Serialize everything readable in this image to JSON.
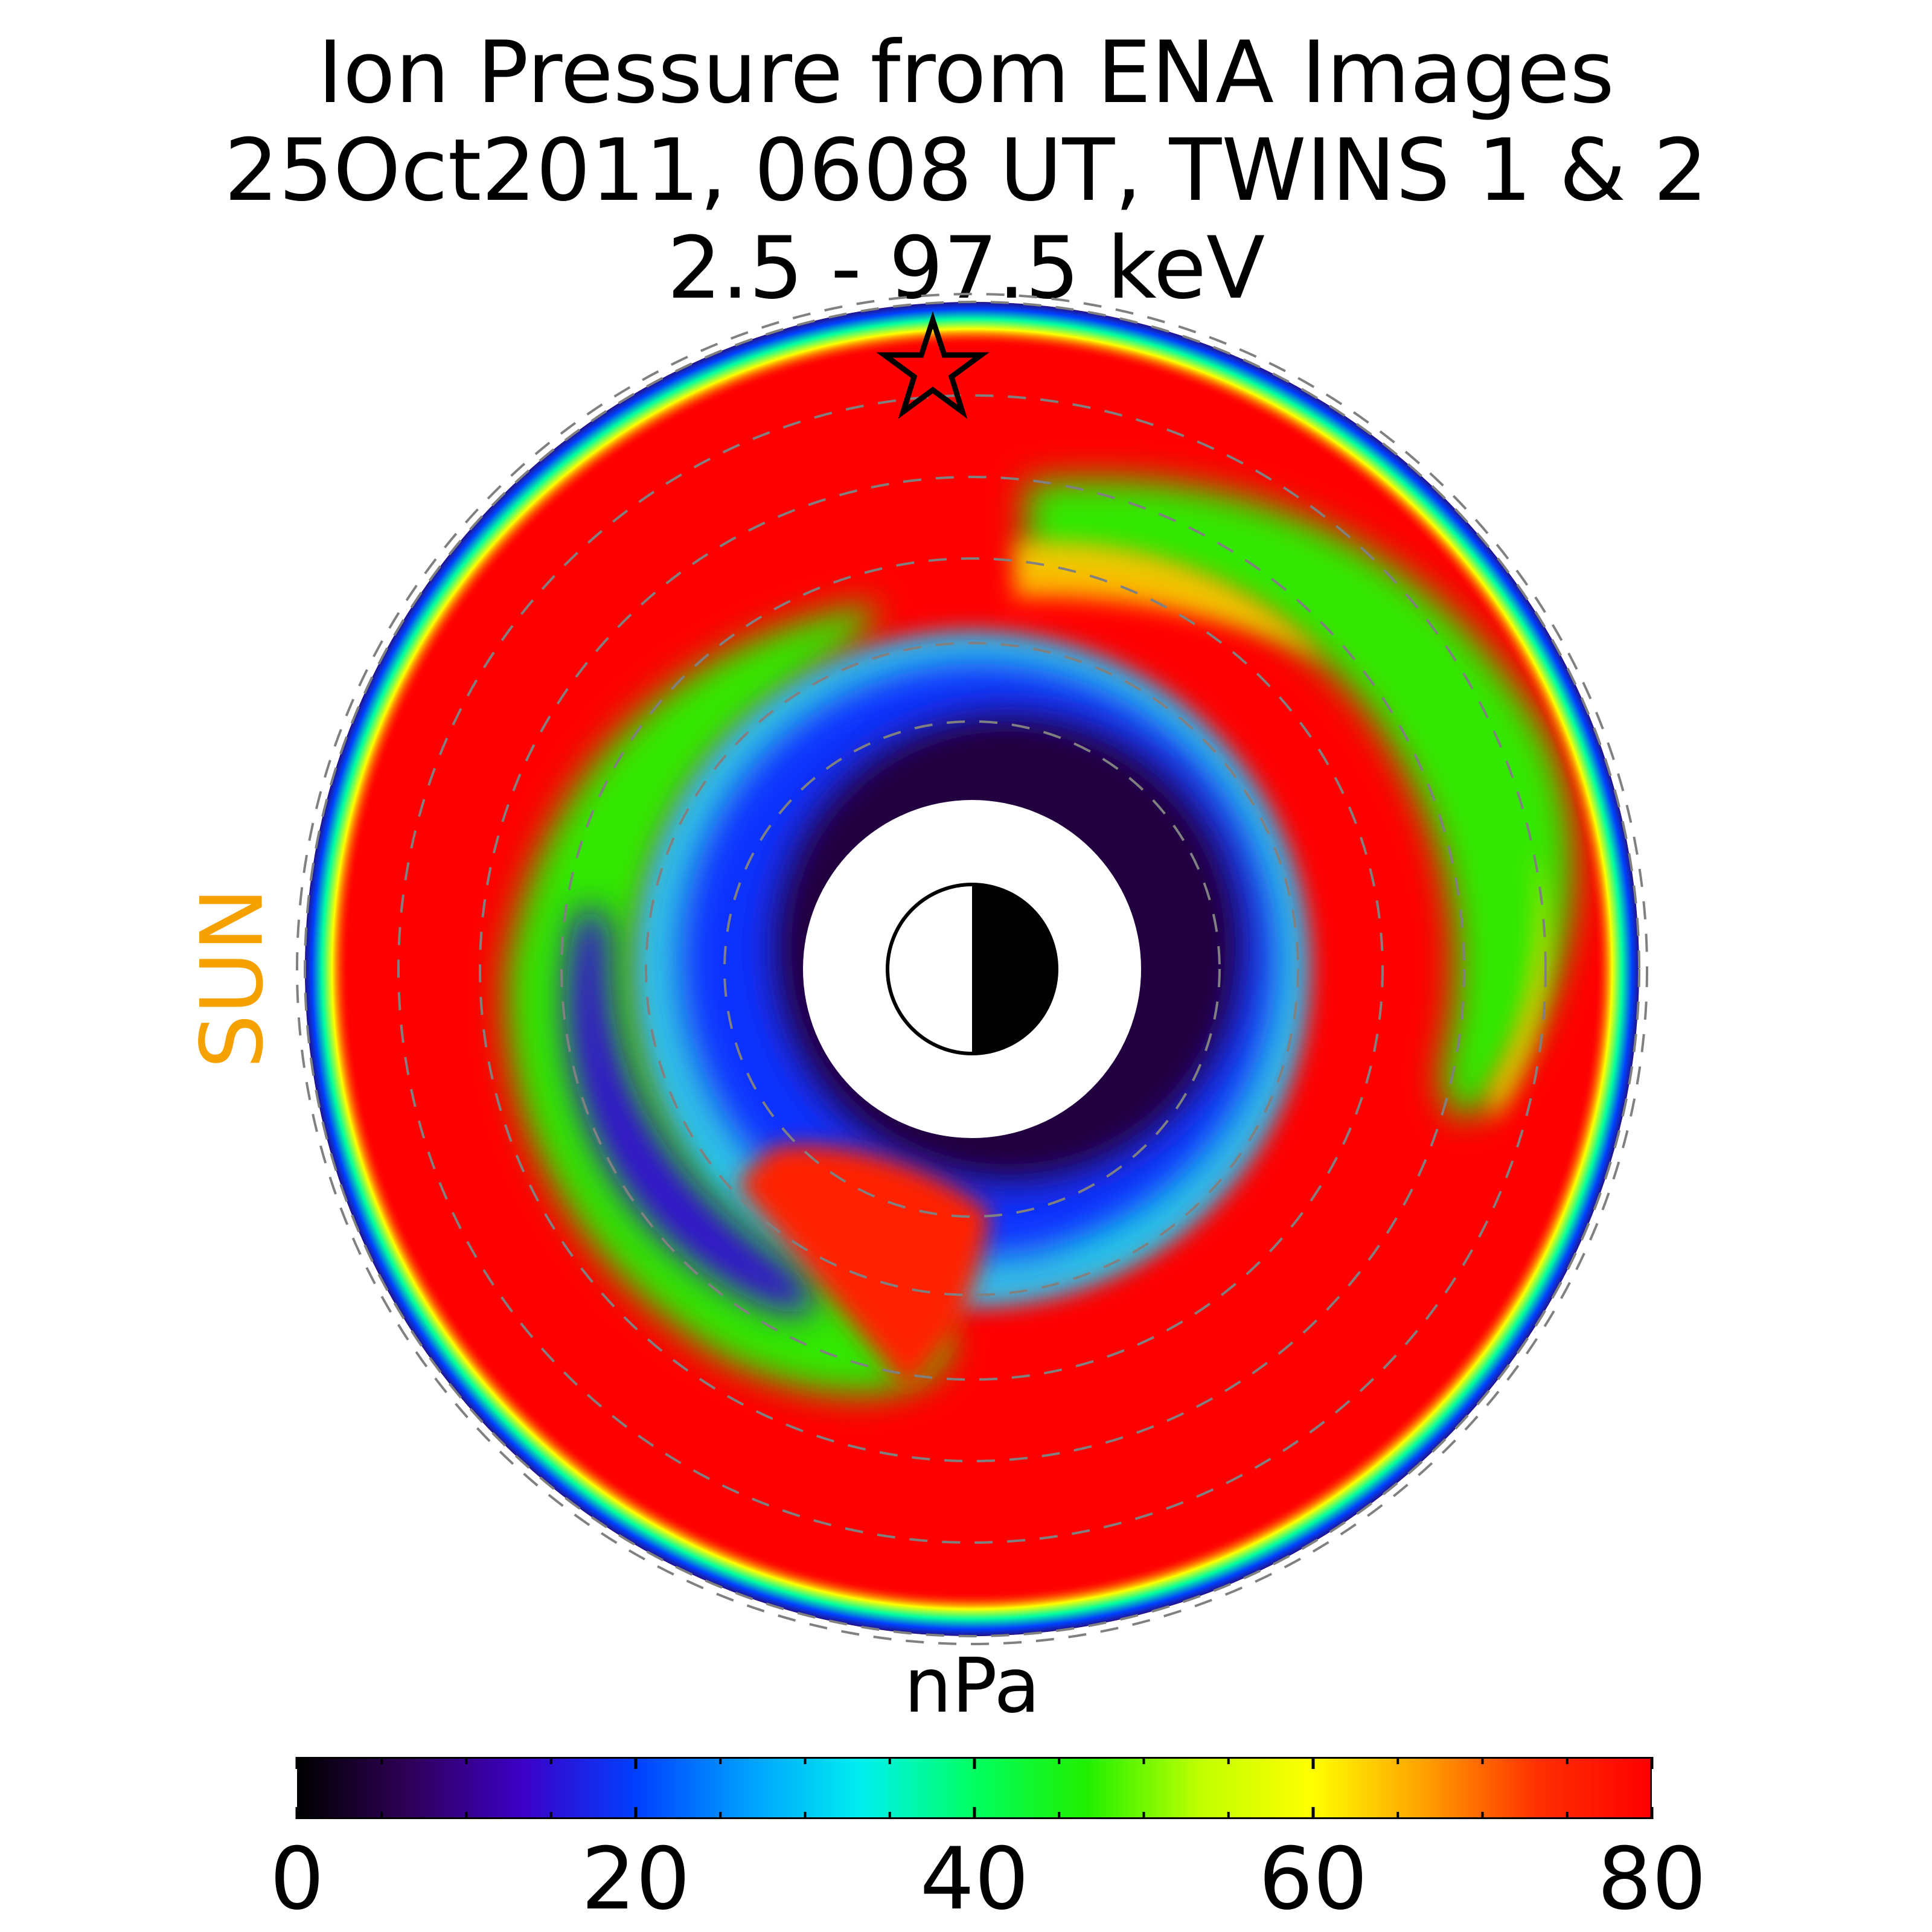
{
  "title_lines": [
    "Ion Pressure from  ENA Images",
    "25Oct2011, 0608 UT,  TWINS 1 & 2",
    "2.5 - 97.5 keV"
  ],
  "sun_label": "SUN",
  "colorbar": {
    "unit": "nPa",
    "min": 0,
    "max": 80,
    "tick_labels": [
      "0",
      "20",
      "40",
      "60",
      "80"
    ],
    "tick_values": [
      0,
      20,
      40,
      60,
      80
    ],
    "minor_step": 5,
    "colormap": [
      "#000000",
      "#30005a",
      "#3c00c8",
      "#0040ff",
      "#00a0ff",
      "#00f0f0",
      "#00ff60",
      "#20f000",
      "#c0ff00",
      "#ffff00",
      "#ffa000",
      "#ff3000",
      "#ff0000"
    ]
  },
  "chart_data": {
    "type": "heatmap",
    "projection": "polar (equatorial plane, Sun to the left)",
    "quantity": "Ion Pressure",
    "units": "nPa",
    "value_range": [
      0,
      80
    ],
    "radial_rings_dashed": 8,
    "features": [
      {
        "name": "near-Earth inner ring",
        "pressure_range_nPa": [
          0,
          15
        ]
      },
      {
        "name": "dusk-to-midnight low-pressure crescent",
        "pressure_range_nPa": [
          15,
          35
        ]
      },
      {
        "name": "spiral enhancement arms",
        "pressure_range_nPa": [
          40,
          65
        ]
      },
      {
        "name": "outer ring",
        "pressure_range_nPa": [
          75,
          80
        ]
      }
    ],
    "spacecraft_marker": "star",
    "earth_symbol": "half-lit disk, dayside toward Sun"
  }
}
